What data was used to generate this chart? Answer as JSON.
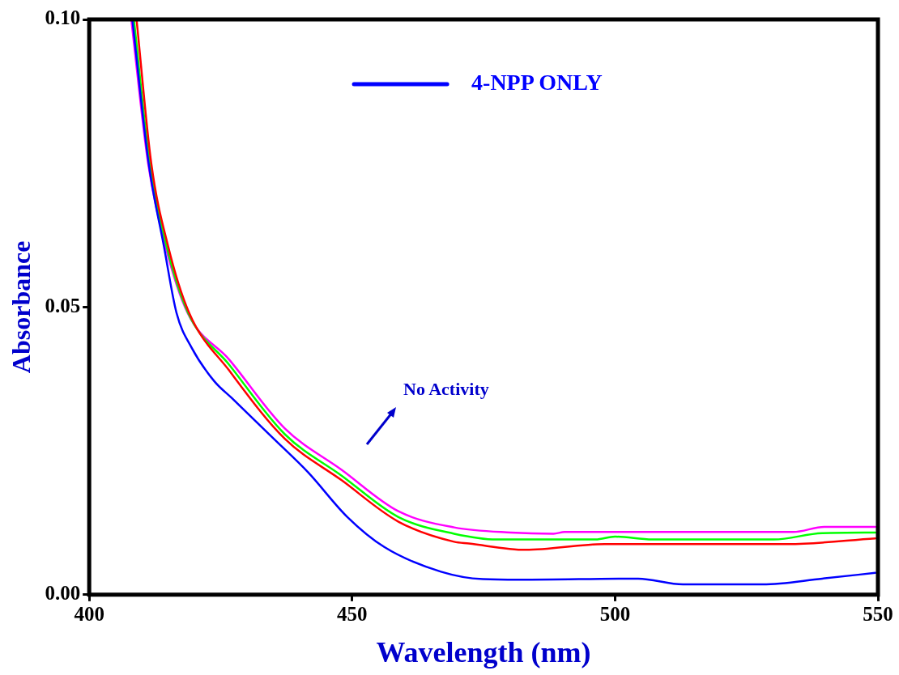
{
  "chart_data": {
    "type": "line",
    "xlabel": "Wavelength (nm)",
    "ylabel": "Absorbance",
    "xlim": [
      400,
      550
    ],
    "xticks": [
      400,
      450,
      500,
      550
    ],
    "ylim": [
      0,
      0.1
    ],
    "yticks": [
      {
        "value": 0,
        "label": "0.00"
      },
      {
        "value": 0.05,
        "label": "0.05"
      },
      {
        "value": 0.1,
        "label": "0.10"
      }
    ],
    "grid": false,
    "legend": "top",
    "marker": "none",
    "line_style": "solid",
    "annotations": [
      "No Activity"
    ],
    "series": [
      {
        "name": "4-NPP ONLY",
        "color": "#0000ff",
        "x": [
          408.2,
          411.3,
          414.2,
          416.6,
          419.5,
          423.8,
          427.1,
          435.1,
          441.6,
          449.1,
          456.1,
          466.9,
          474.9,
          481.8,
          504.4,
          512.9,
          528.1,
          539.4,
          549.5
        ],
        "values": [
          0.1,
          0.075,
          0.0606,
          0.049,
          0.0429,
          0.0371,
          0.0342,
          0.0271,
          0.0213,
          0.0135,
          0.0083,
          0.004,
          0.0027,
          0.0026,
          0.0028,
          0.0018,
          0.0018,
          0.0028,
          0.0038
        ]
      },
      {
        "color": "#ff0000",
        "x": [
          409,
          411.8,
          415,
          419,
          426.6,
          437.2,
          448,
          458.8,
          469.4,
          472.2,
          483,
          498,
          532.9,
          549.5
        ],
        "values": [
          0.1,
          0.075,
          0.0606,
          0.049,
          0.039,
          0.0271,
          0.0199,
          0.0127,
          0.0092,
          0.0089,
          0.0078,
          0.0088,
          0.0088,
          0.0098
        ]
      },
      {
        "color": "#00ff00",
        "x": [
          408.5,
          411.5,
          414.7,
          418.8,
          426.6,
          437.2,
          448,
          458.8,
          469.4,
          477.5,
          496.3,
          500,
          507.1,
          530.2,
          539.4,
          549.5
        ],
        "values": [
          0.1,
          0.075,
          0.0606,
          0.049,
          0.04,
          0.0279,
          0.0207,
          0.0135,
          0.0106,
          0.0096,
          0.0096,
          0.0101,
          0.0096,
          0.0096,
          0.0107,
          0.0108
        ]
      },
      {
        "color": "#ff00ff",
        "x": [
          408,
          411.2,
          414.5,
          418.7,
          426.6,
          437.2,
          448,
          458.8,
          469.4,
          480.2,
          488.3,
          490.4,
          533.9,
          539.8,
          549.5
        ],
        "values": [
          0.1,
          0.075,
          0.0606,
          0.049,
          0.0409,
          0.0289,
          0.0217,
          0.0145,
          0.0117,
          0.0108,
          0.0106,
          0.0109,
          0.0109,
          0.0118,
          0.0118
        ]
      }
    ]
  }
}
